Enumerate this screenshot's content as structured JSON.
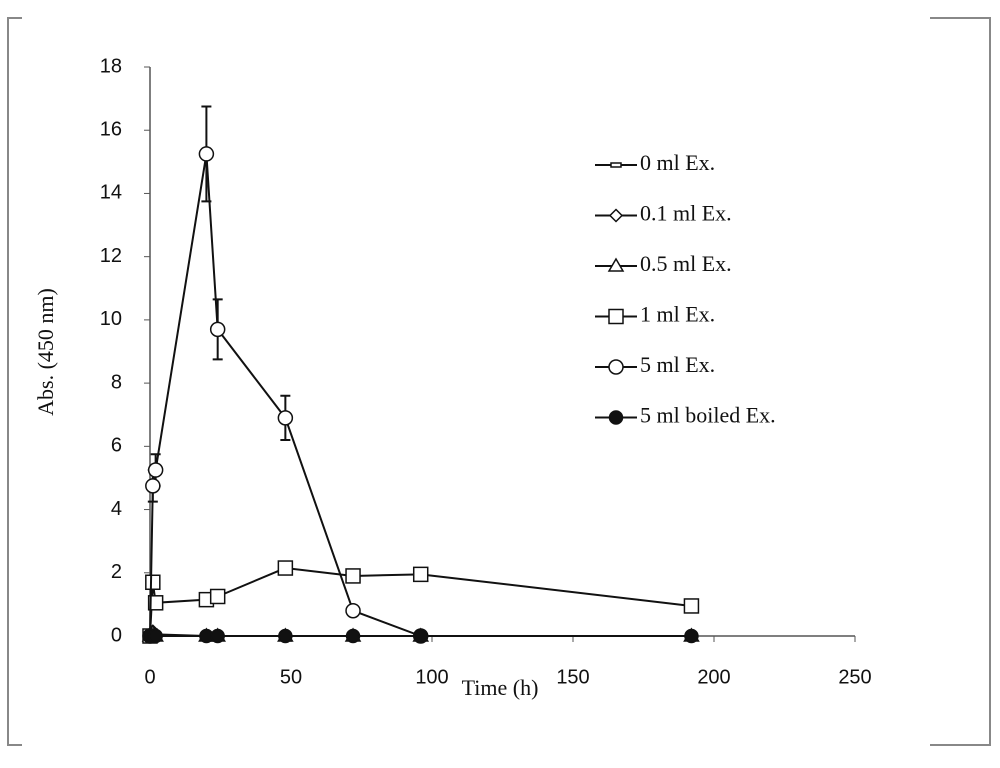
{
  "chart_data": {
    "type": "line",
    "x_label": "Time (h)",
    "y_label": "Abs. (450 nm)",
    "x": [
      0,
      1,
      2,
      20,
      24,
      48,
      72,
      96,
      192
    ],
    "xlim": [
      0,
      250
    ],
    "xticks": [
      0,
      50,
      100,
      150,
      200,
      250
    ],
    "ylim": [
      0,
      18
    ],
    "yticks": [
      0,
      2,
      4,
      6,
      8,
      10,
      12,
      14,
      16,
      18
    ],
    "grid": false,
    "legend": "right",
    "series": [
      {
        "name": "0 ml Ex.",
        "color": "#111",
        "marker": "dash",
        "values": [
          0,
          0,
          0,
          0,
          0,
          0,
          0,
          0,
          0
        ]
      },
      {
        "name": "0.1 ml Ex.",
        "color": "#111",
        "marker": "diamond",
        "values": [
          0,
          0.15,
          0.05,
          0,
          0,
          0,
          0,
          0,
          0
        ]
      },
      {
        "name": "0.5 ml Ex.",
        "color": "#111",
        "marker": "triangle",
        "values": [
          0,
          0.1,
          0,
          0,
          0,
          0,
          0,
          0,
          0
        ]
      },
      {
        "name": "1 ml Ex.",
        "color": "#111",
        "marker": "square",
        "values": [
          0,
          1.7,
          1.05,
          1.15,
          1.25,
          2.15,
          1.9,
          1.95,
          0.95
        ]
      },
      {
        "name": "5 ml Ex.",
        "color": "#111",
        "marker": "circle",
        "values": [
          0,
          4.75,
          5.25,
          15.25,
          9.7,
          6.9,
          0.8,
          0,
          null
        ],
        "errors": [
          null,
          0.5,
          0.5,
          1.5,
          0.95,
          0.7,
          null,
          null,
          null
        ]
      },
      {
        "name": "5 ml boiled Ex.",
        "color": "#111",
        "marker": "filled-circle",
        "values": [
          0,
          0,
          0,
          0,
          0,
          0,
          0,
          0,
          0
        ]
      }
    ]
  }
}
